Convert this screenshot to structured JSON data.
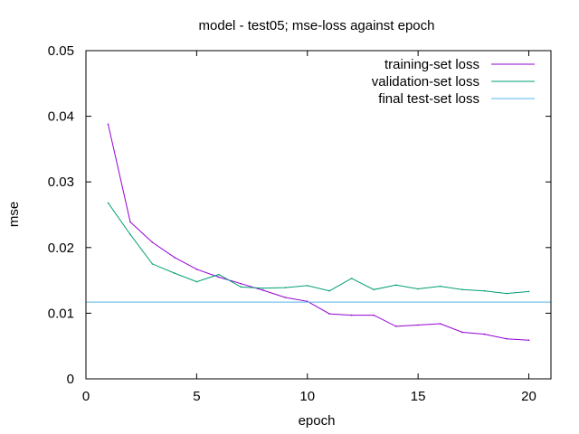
{
  "chart_data": {
    "type": "line",
    "title": "model - test05; mse-loss against epoch",
    "xlabel": "epoch",
    "ylabel": "mse",
    "xlim": [
      0,
      21
    ],
    "ylim": [
      0,
      0.05
    ],
    "xticks": [
      0,
      5,
      10,
      15,
      20
    ],
    "yticks": [
      0,
      0.01,
      0.02,
      0.03,
      0.04,
      0.05
    ],
    "ytick_labels": [
      "0",
      "0.01",
      "0.02",
      "0.03",
      "0.04",
      "0.05"
    ],
    "grid": false,
    "legend_position": "top-right",
    "series": [
      {
        "name": "training-set loss",
        "color": "#9400d3",
        "x": [
          1,
          2,
          3,
          4,
          5,
          6,
          7,
          8,
          9,
          10,
          11,
          12,
          13,
          14,
          15,
          16,
          17,
          18,
          19,
          20
        ],
        "values": [
          0.0388,
          0.0239,
          0.0208,
          0.0185,
          0.0167,
          0.0155,
          0.0145,
          0.0135,
          0.0124,
          0.0118,
          0.0099,
          0.0097,
          0.0097,
          0.008,
          0.0082,
          0.0084,
          0.0071,
          0.0068,
          0.0061,
          0.0059
        ]
      },
      {
        "name": "validation-set loss",
        "color": "#009e73",
        "x": [
          1,
          2,
          3,
          4,
          5,
          6,
          7,
          8,
          9,
          10,
          11,
          12,
          13,
          14,
          15,
          16,
          17,
          18,
          19,
          20
        ],
        "values": [
          0.0268,
          0.022,
          0.0175,
          0.0161,
          0.0148,
          0.0159,
          0.014,
          0.0138,
          0.0139,
          0.0142,
          0.0134,
          0.0153,
          0.0136,
          0.0143,
          0.0137,
          0.0141,
          0.0136,
          0.0134,
          0.013,
          0.0133
        ]
      },
      {
        "name": "final test-set loss",
        "color": "#56b4e9",
        "constant": 0.0117
      }
    ]
  }
}
